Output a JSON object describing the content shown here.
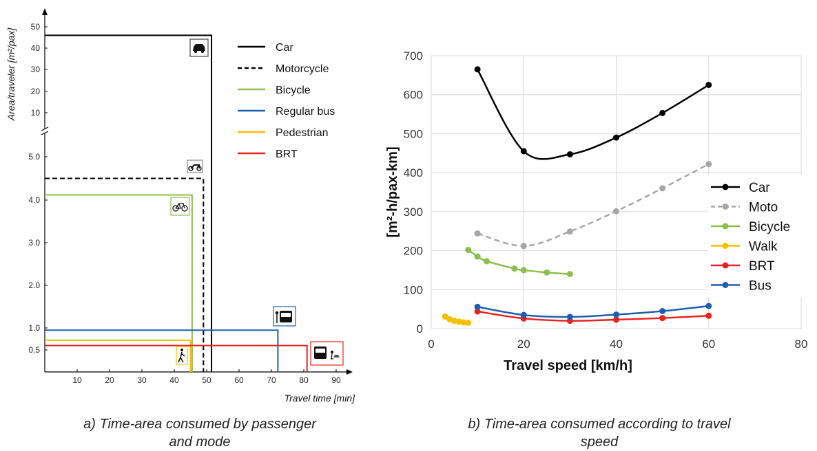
{
  "captions": {
    "a_line1": "a) Time-area consumed by passenger",
    "a_line2": "and mode",
    "b_line1": "b) Time-area consumed according to travel",
    "b_line2": "speed"
  },
  "chart_data": [
    {
      "type": "line",
      "title": "",
      "xlabel": "Travel time [min]",
      "ylabel": "Area/traveler [m²/pax]",
      "y_axis_break": true,
      "x_ticks": [
        10,
        20,
        30,
        40,
        50,
        60,
        70,
        80,
        90
      ],
      "y_ticks_lower": [
        "0.5",
        "1.0",
        "2.0",
        "3.0",
        "4.0",
        "5.0"
      ],
      "y_ticks_upper": [
        "10",
        "20",
        "30",
        "40",
        "50"
      ],
      "legend_position": "top-right",
      "series": [
        {
          "name": "Car",
          "color": "#000000",
          "dash": "solid",
          "time_min": 51.5,
          "area_m2_per_pax": 46,
          "icon": "car-icon"
        },
        {
          "name": "Motorcycle",
          "color": "#000000",
          "dash": "dashed",
          "time_min": 49,
          "area_m2_per_pax": 4.5,
          "icon": "motorcycle-icon"
        },
        {
          "name": "Bicycle",
          "color": "#8cbf4e",
          "dash": "solid",
          "time_min": 45.5,
          "area_m2_per_pax": 4.12,
          "icon": "bicycle-icon"
        },
        {
          "name": "Regular bus",
          "color": "#1f5fb0",
          "dash": "solid",
          "time_min": 72,
          "area_m2_per_pax": 0.95,
          "icon": "bus-stop-icon"
        },
        {
          "name": "Pedestrian",
          "color": "#f5c000",
          "dash": "solid",
          "time_min": 45,
          "area_m2_per_pax": 0.72,
          "icon": "pedestrian-icon"
        },
        {
          "name": "BRT",
          "color": "#e8231f",
          "dash": "solid",
          "time_min": 81,
          "area_m2_per_pax": 0.6,
          "icon": "brt-icon"
        }
      ]
    },
    {
      "type": "line",
      "title": "",
      "xlabel": "Travel speed [km/h]",
      "ylabel": "[m²-h/pax-km]",
      "xlim": [
        0,
        80
      ],
      "ylim": [
        0,
        700
      ],
      "x_ticks": [
        0,
        20,
        40,
        60,
        80
      ],
      "y_ticks": [
        0,
        100,
        200,
        300,
        400,
        500,
        600,
        700
      ],
      "grid": true,
      "legend_position": "right",
      "series": [
        {
          "name": "Car",
          "color": "#000000",
          "dash": "solid",
          "x": [
            10,
            20,
            30,
            40,
            50,
            60
          ],
          "y": [
            665,
            455,
            447,
            490,
            553,
            625
          ]
        },
        {
          "name": "Moto",
          "color": "#a6a6a6",
          "dash": "dashed",
          "x": [
            10,
            20,
            30,
            40,
            50,
            60
          ],
          "y": [
            244,
            212,
            249,
            301,
            360,
            422
          ]
        },
        {
          "name": "Bicycle",
          "color": "#8cbf4e",
          "dash": "solid",
          "x": [
            8,
            10,
            12,
            18,
            20,
            25,
            30
          ],
          "y": [
            202,
            185,
            173,
            154,
            150,
            144,
            140
          ]
        },
        {
          "name": "Walk",
          "color": "#f5c000",
          "dash": "solid",
          "x": [
            3,
            4,
            5,
            6,
            7,
            8
          ],
          "y": [
            31,
            24,
            20,
            18,
            16,
            15
          ]
        },
        {
          "name": "BRT",
          "color": "#e8231f",
          "dash": "solid",
          "x": [
            10,
            20,
            30,
            40,
            50,
            60
          ],
          "y": [
            44,
            26,
            20,
            23,
            27,
            33
          ]
        },
        {
          "name": "Bus",
          "color": "#1f5fb0",
          "dash": "solid",
          "x": [
            10,
            20,
            30,
            40,
            50,
            60
          ],
          "y": [
            56,
            35,
            30,
            36,
            45,
            58
          ]
        }
      ]
    }
  ]
}
